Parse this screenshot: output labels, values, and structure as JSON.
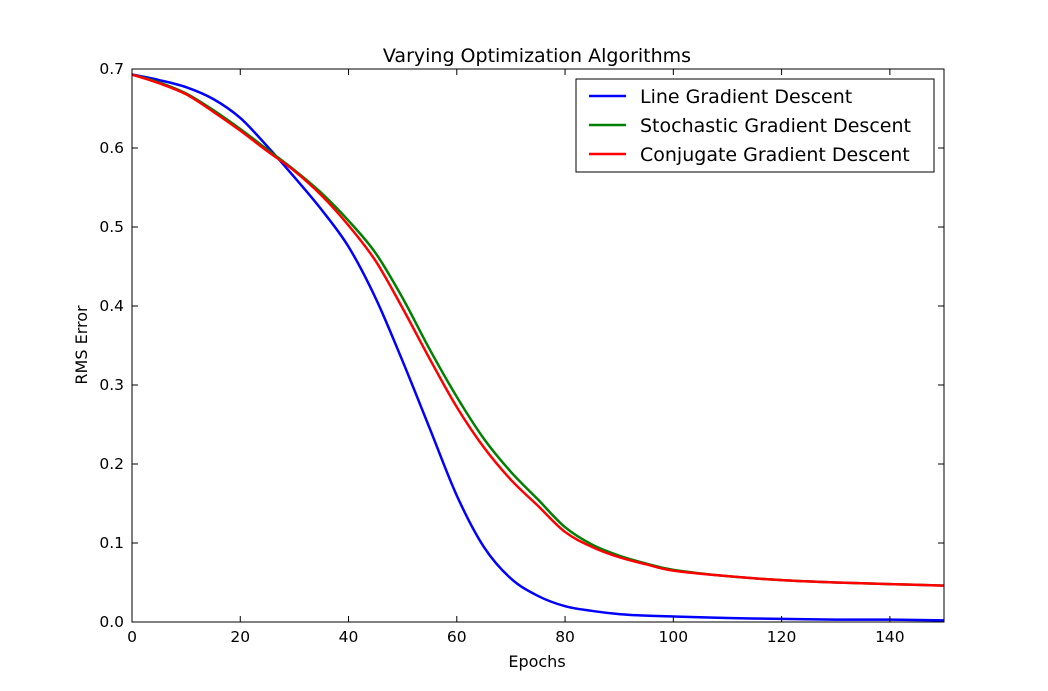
{
  "chart_data": {
    "type": "line",
    "title": "Varying Optimization Algorithms",
    "xlabel": "Epochs",
    "ylabel": "RMS Error",
    "xlim": [
      0,
      150
    ],
    "ylim": [
      0,
      0.7
    ],
    "xticks": [
      0,
      20,
      40,
      60,
      80,
      100,
      120,
      140
    ],
    "yticks": [
      0.0,
      0.1,
      0.2,
      0.3,
      0.4,
      0.5,
      0.6,
      0.7
    ],
    "xtick_labels": [
      "0",
      "20",
      "40",
      "60",
      "80",
      "100",
      "120",
      "140"
    ],
    "ytick_labels": [
      "0.0",
      "0.1",
      "0.2",
      "0.3",
      "0.4",
      "0.5",
      "0.6",
      "0.7"
    ],
    "grid": false,
    "legend_position": "top-right",
    "x": [
      0,
      5,
      10,
      15,
      20,
      25,
      30,
      35,
      40,
      45,
      50,
      55,
      60,
      65,
      70,
      75,
      80,
      85,
      90,
      95,
      100,
      110,
      120,
      130,
      140,
      150
    ],
    "series": [
      {
        "name": "Line Gradient Descent",
        "color": "#0000ff",
        "values": [
          0.693,
          0.686,
          0.677,
          0.662,
          0.638,
          0.602,
          0.563,
          0.522,
          0.475,
          0.41,
          0.33,
          0.245,
          0.16,
          0.095,
          0.055,
          0.033,
          0.02,
          0.014,
          0.01,
          0.008,
          0.007,
          0.005,
          0.004,
          0.003,
          0.003,
          0.002
        ]
      },
      {
        "name": "Stochastic Gradient Descent",
        "color": "#008000",
        "values": [
          0.693,
          0.683,
          0.669,
          0.648,
          0.624,
          0.598,
          0.572,
          0.543,
          0.508,
          0.467,
          0.41,
          0.345,
          0.285,
          0.232,
          0.19,
          0.155,
          0.12,
          0.098,
          0.084,
          0.074,
          0.066,
          0.058,
          0.053,
          0.05,
          0.048,
          0.046
        ]
      },
      {
        "name": "Conjugate Gradient Descent",
        "color": "#ff0000",
        "values": [
          0.693,
          0.682,
          0.668,
          0.646,
          0.622,
          0.596,
          0.571,
          0.54,
          0.502,
          0.457,
          0.397,
          0.333,
          0.272,
          0.221,
          0.18,
          0.147,
          0.114,
          0.095,
          0.082,
          0.073,
          0.065,
          0.058,
          0.053,
          0.05,
          0.048,
          0.046
        ]
      }
    ]
  }
}
